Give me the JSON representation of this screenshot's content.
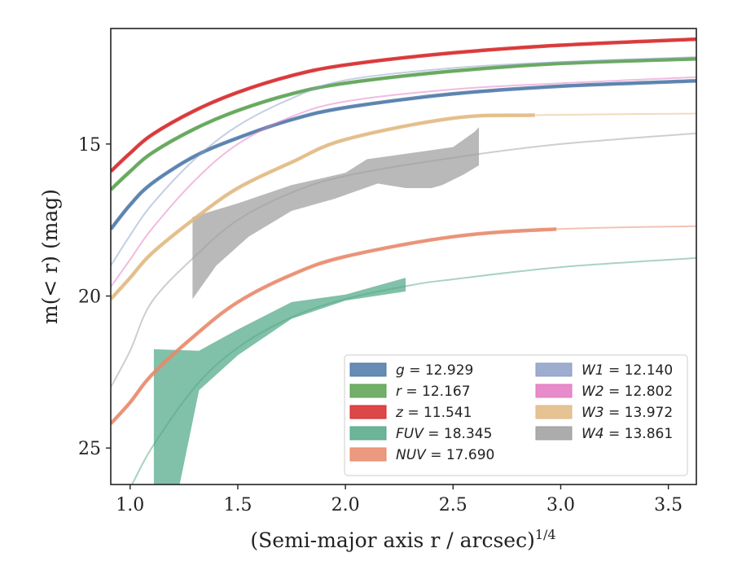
{
  "chart_data": {
    "type": "line",
    "title": "",
    "xlabel": "(Semi-major axis r / arcsec)",
    "xlabel_super": "1/4",
    "ylabel": "m(< r) (mag)",
    "xlim": [
      0.91,
      3.63
    ],
    "ylim": [
      26.2,
      11.2
    ],
    "y_inverted": true,
    "x_ticks": [
      {
        "value": 1.0,
        "label": "1.0"
      },
      {
        "value": 1.5,
        "label": "1.5"
      },
      {
        "value": 2.0,
        "label": "2.0"
      },
      {
        "value": 2.5,
        "label": "2.5"
      },
      {
        "value": 3.0,
        "label": "3.0"
      },
      {
        "value": 3.5,
        "label": "3.5"
      }
    ],
    "y_ticks": [
      {
        "value": 15,
        "label": "15"
      },
      {
        "value": 20,
        "label": "20"
      },
      {
        "value": 25,
        "label": "25"
      }
    ],
    "legend_position": "lower-right",
    "series": [
      {
        "key": "g",
        "color": "#4c78a8",
        "band_end": 3.63,
        "points": [
          [
            0.91,
            17.8
          ],
          [
            1.0,
            17.0
          ],
          [
            1.1,
            16.3
          ],
          [
            1.3,
            15.4
          ],
          [
            1.5,
            14.8
          ],
          [
            1.75,
            14.2
          ],
          [
            2.0,
            13.8
          ],
          [
            2.5,
            13.35
          ],
          [
            3.0,
            13.1
          ],
          [
            3.63,
            12.92
          ]
        ]
      },
      {
        "key": "r",
        "color": "#59a14f",
        "band_end": 3.63,
        "points": [
          [
            0.91,
            16.5
          ],
          [
            1.0,
            15.9
          ],
          [
            1.1,
            15.3
          ],
          [
            1.3,
            14.5
          ],
          [
            1.5,
            13.9
          ],
          [
            1.75,
            13.35
          ],
          [
            2.0,
            13.0
          ],
          [
            2.5,
            12.6
          ],
          [
            3.0,
            12.35
          ],
          [
            3.63,
            12.2
          ]
        ]
      },
      {
        "key": "z",
        "color": "#d62728",
        "band_end": 3.63,
        "points": [
          [
            0.91,
            15.9
          ],
          [
            1.0,
            15.3
          ],
          [
            1.1,
            14.7
          ],
          [
            1.3,
            13.9
          ],
          [
            1.5,
            13.3
          ],
          [
            1.75,
            12.75
          ],
          [
            2.0,
            12.4
          ],
          [
            2.5,
            12.0
          ],
          [
            3.0,
            11.75
          ],
          [
            3.63,
            11.55
          ]
        ]
      },
      {
        "key": "W1",
        "color": "#8c9ec7",
        "band_end": 0,
        "points": [
          [
            0.91,
            19.0
          ],
          [
            1.0,
            18.0
          ],
          [
            1.1,
            17.0
          ],
          [
            1.3,
            15.5
          ],
          [
            1.5,
            14.4
          ],
          [
            1.75,
            13.5
          ],
          [
            2.0,
            12.9
          ],
          [
            2.5,
            12.5
          ],
          [
            3.0,
            12.3
          ],
          [
            3.63,
            12.14
          ]
        ]
      },
      {
        "key": "W2",
        "color": "#e377c2",
        "band_end": 0,
        "points": [
          [
            0.91,
            19.7
          ],
          [
            1.0,
            18.8
          ],
          [
            1.1,
            17.8
          ],
          [
            1.3,
            16.2
          ],
          [
            1.5,
            15.0
          ],
          [
            1.75,
            14.1
          ],
          [
            2.0,
            13.6
          ],
          [
            2.5,
            13.2
          ],
          [
            3.0,
            13.0
          ],
          [
            3.63,
            12.8
          ]
        ]
      },
      {
        "key": "W3",
        "color": "#e0b980",
        "band_end": 2.88,
        "points": [
          [
            0.91,
            20.1
          ],
          [
            1.0,
            19.4
          ],
          [
            1.1,
            18.6
          ],
          [
            1.3,
            17.45
          ],
          [
            1.5,
            16.45
          ],
          [
            1.75,
            15.6
          ],
          [
            2.0,
            14.85
          ],
          [
            2.5,
            14.15
          ],
          [
            2.88,
            14.05
          ],
          [
            3.63,
            14.0
          ]
        ]
      },
      {
        "key": "W4",
        "color": "#9e9e9e",
        "band_end": 0,
        "points": [
          [
            0.91,
            23.0
          ],
          [
            1.0,
            21.8
          ],
          [
            1.1,
            20.2
          ],
          [
            1.3,
            18.7
          ],
          [
            1.5,
            17.5
          ],
          [
            1.75,
            16.6
          ],
          [
            2.0,
            16.05
          ],
          [
            2.5,
            15.45
          ],
          [
            3.0,
            15.0
          ],
          [
            3.63,
            14.65
          ]
        ]
      },
      {
        "key": "FUV",
        "color": "#52a886",
        "band_end": 0,
        "points": [
          [
            0.91,
            27.2
          ],
          [
            1.0,
            26.3
          ],
          [
            1.1,
            25.0
          ],
          [
            1.3,
            23.0
          ],
          [
            1.5,
            21.7
          ],
          [
            1.75,
            20.7
          ],
          [
            2.0,
            20.1
          ],
          [
            2.3,
            19.65
          ],
          [
            2.5,
            19.45
          ],
          [
            3.0,
            19.05
          ],
          [
            3.63,
            18.75
          ]
        ]
      },
      {
        "key": "NUV",
        "color": "#e8886a",
        "band_end": 2.98,
        "points": [
          [
            0.91,
            24.2
          ],
          [
            1.0,
            23.5
          ],
          [
            1.1,
            22.6
          ],
          [
            1.3,
            21.3
          ],
          [
            1.5,
            20.2
          ],
          [
            1.75,
            19.3
          ],
          [
            2.0,
            18.7
          ],
          [
            2.5,
            18.05
          ],
          [
            2.98,
            17.8
          ],
          [
            3.63,
            17.7
          ]
        ]
      }
    ],
    "bands": [
      {
        "key": "W4",
        "color": "#a8a8a8",
        "upper": [
          [
            1.29,
            17.4
          ],
          [
            1.5,
            16.95
          ],
          [
            1.75,
            16.35
          ],
          [
            2.0,
            15.95
          ],
          [
            2.1,
            15.5
          ],
          [
            2.3,
            15.3
          ],
          [
            2.5,
            15.1
          ],
          [
            2.6,
            14.6
          ],
          [
            2.62,
            14.45
          ]
        ],
        "lower": [
          [
            2.62,
            15.7
          ],
          [
            2.55,
            16.0
          ],
          [
            2.45,
            16.35
          ],
          [
            2.4,
            16.45
          ],
          [
            2.28,
            16.45
          ],
          [
            2.15,
            16.3
          ],
          [
            1.95,
            16.8
          ],
          [
            1.75,
            17.2
          ],
          [
            1.55,
            18.05
          ],
          [
            1.4,
            19.0
          ],
          [
            1.29,
            20.1
          ]
        ]
      },
      {
        "key": "FUV",
        "color": "#6bb59a",
        "upper": [
          [
            1.11,
            21.75
          ],
          [
            1.32,
            21.8
          ],
          [
            1.5,
            21.1
          ],
          [
            1.75,
            20.2
          ],
          [
            2.0,
            19.95
          ],
          [
            2.28,
            19.4
          ]
        ],
        "lower": [
          [
            2.28,
            19.85
          ],
          [
            2.0,
            20.15
          ],
          [
            1.75,
            20.75
          ],
          [
            1.5,
            21.95
          ],
          [
            1.32,
            23.1
          ],
          [
            1.23,
            26.2
          ],
          [
            1.11,
            26.2
          ]
        ]
      }
    ],
    "legend": [
      {
        "key": "g",
        "label": "g = 12.929",
        "color": "#4c78a8"
      },
      {
        "key": "r",
        "label": "r = 12.167",
        "color": "#59a14f"
      },
      {
        "key": "z",
        "label": "z = 11.541",
        "color": "#d62728"
      },
      {
        "key": "FUV",
        "label": "FUV = 18.345",
        "color": "#52a886"
      },
      {
        "key": "NUV",
        "label": "NUV = 17.690",
        "color": "#e8886a"
      },
      {
        "key": "W1",
        "label": "W1 = 12.140",
        "color": "#8c9ec7"
      },
      {
        "key": "W2",
        "label": "W2 = 12.802",
        "color": "#e377c2"
      },
      {
        "key": "W3",
        "label": "W3 = 13.972",
        "color": "#e0b980"
      },
      {
        "key": "W4",
        "label": "W4 = 13.861",
        "color": "#9e9e9e"
      }
    ]
  }
}
